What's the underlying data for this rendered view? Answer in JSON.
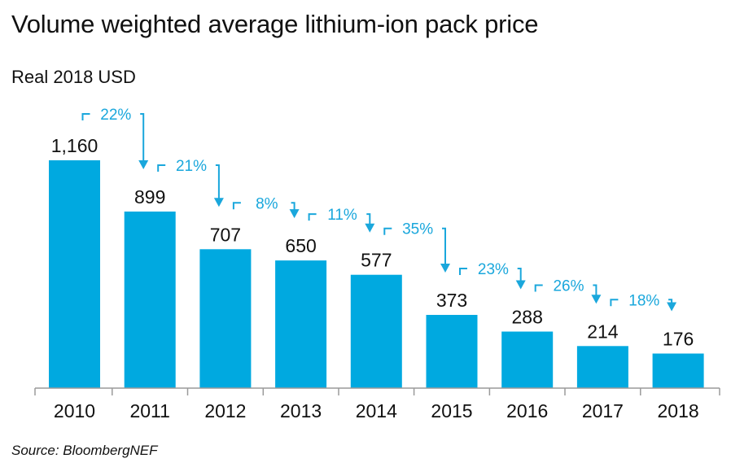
{
  "chart_data": {
    "type": "bar",
    "title": "Volume weighted average lithium-ion pack price",
    "subtitle": "Real 2018 USD",
    "source": "Source: BloombergNEF",
    "xlabel": "",
    "ylabel": "Real 2018 USD",
    "ylim": [
      0,
      1160
    ],
    "categories": [
      "2010",
      "2011",
      "2012",
      "2013",
      "2014",
      "2015",
      "2016",
      "2017",
      "2018"
    ],
    "values": [
      1160,
      899,
      707,
      650,
      577,
      373,
      288,
      214,
      176
    ],
    "value_labels": [
      "1,160",
      "899",
      "707",
      "650",
      "577",
      "373",
      "288",
      "214",
      "176"
    ],
    "annotations": [
      {
        "from": "2010",
        "to": "2011",
        "label": "22%"
      },
      {
        "from": "2011",
        "to": "2012",
        "label": "21%"
      },
      {
        "from": "2012",
        "to": "2013",
        "label": "8%"
      },
      {
        "from": "2013",
        "to": "2014",
        "label": "11%"
      },
      {
        "from": "2014",
        "to": "2015",
        "label": "35%"
      },
      {
        "from": "2015",
        "to": "2016",
        "label": "23%"
      },
      {
        "from": "2016",
        "to": "2017",
        "label": "26%"
      },
      {
        "from": "2017",
        "to": "2018",
        "label": "18%"
      }
    ],
    "bar_color": "#00a9e0",
    "annotation_color": "#1aa7dc",
    "axis_color": "#9a9a9a"
  }
}
